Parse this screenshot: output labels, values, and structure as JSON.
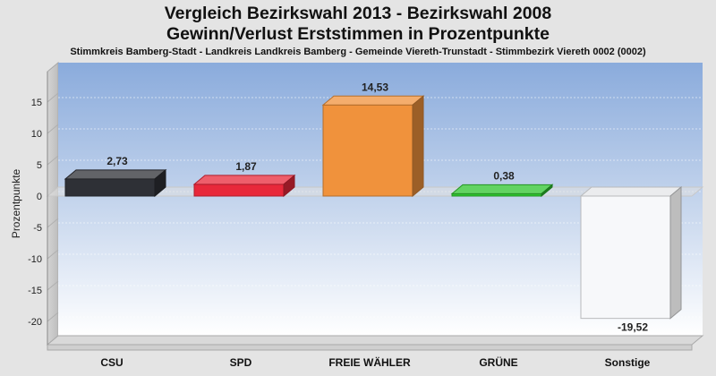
{
  "chart_data": {
    "type": "bar",
    "title": "Vergleich Bezirkswahl 2013 - Bezirkswahl 2008",
    "subtitle": "Gewinn/Verlust Erststimmen in Prozentpunkte",
    "caption": "Stimmkreis Bamberg-Stadt - Landkreis Landkreis Bamberg - Gemeinde Viereth-Trunstadt - Stimmbezirk Viereth 0002 (0002)",
    "ylabel": "Prozentpunkte",
    "xlabel": "",
    "ylim": [
      -20,
      15
    ],
    "yticks": [
      15,
      10,
      5,
      0,
      -5,
      -10,
      -15,
      -20
    ],
    "grid": true,
    "categories": [
      "CSU",
      "SPD",
      "FREIE WÄHLER",
      "GRÜNE",
      "Sonstige"
    ],
    "values": [
      2.73,
      1.87,
      14.53,
      0.38,
      -19.52
    ],
    "value_labels": [
      "2,73",
      "1,87",
      "14,53",
      "0,38",
      "-19,52"
    ],
    "colors": [
      "#2e3036",
      "#e8283a",
      "#f0923c",
      "#2ec42e",
      "#f7f8fa"
    ]
  }
}
